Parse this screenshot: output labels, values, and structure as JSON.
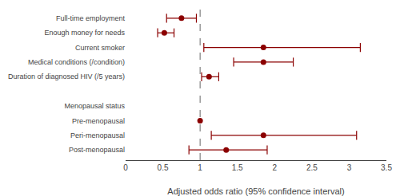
{
  "chart_data": {
    "type": "forest",
    "categories": [
      "Full-time employment",
      "Enough money for needs",
      "Current smoker",
      "Medical conditions (/condition)",
      "Duration of diagnosed HIV (/5 years)",
      null,
      "Menopausal status",
      "Pre-menopausal",
      "Peri-menopausal",
      "Post-menopausal"
    ],
    "values": [
      0.75,
      0.52,
      1.85,
      1.85,
      1.12,
      null,
      null,
      1.0,
      1.85,
      1.35
    ],
    "ci_low": [
      0.55,
      0.43,
      1.05,
      1.45,
      1.02,
      null,
      null,
      null,
      1.15,
      0.85
    ],
    "ci_high": [
      0.95,
      0.65,
      3.15,
      2.25,
      1.25,
      null,
      null,
      null,
      3.1,
      1.9
    ],
    "color": "#8B0000",
    "marker": "circle",
    "reference_line": 1.0,
    "xlabel": "Adjusted odds ratio (95% confidence interval)",
    "xlim": [
      0,
      3.5
    ],
    "xticks": [
      0,
      0.5,
      1,
      1.5,
      2,
      2.5,
      3,
      3.5
    ],
    "grid": false
  }
}
